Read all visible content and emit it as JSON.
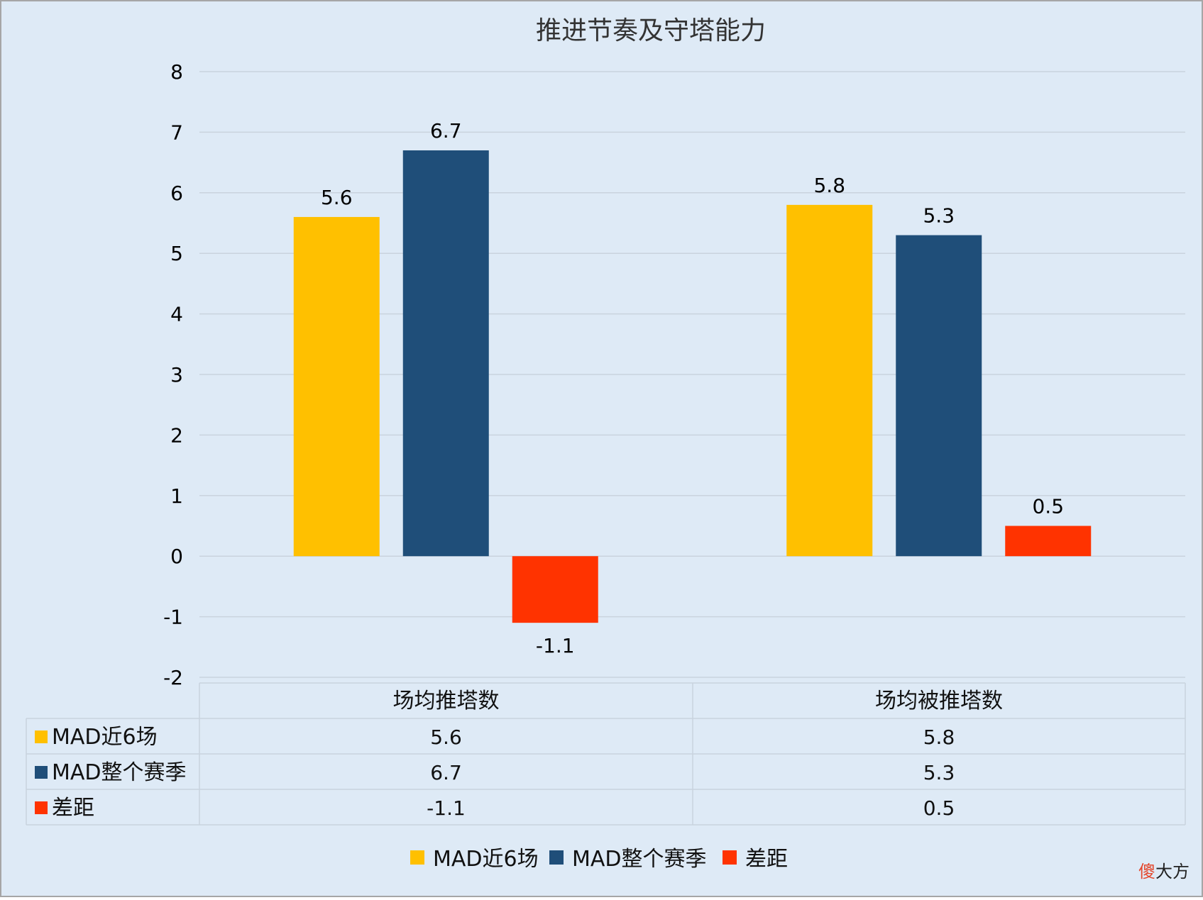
{
  "chart_data": {
    "type": "bar",
    "title": "推进节奏及守塔能力",
    "categories": [
      "场均推塔数",
      "场均被推塔数"
    ],
    "series": [
      {
        "name": "MAD近6场",
        "values": [
          5.6,
          5.8
        ],
        "color": "#FFC000"
      },
      {
        "name": "MAD整个赛季",
        "values": [
          6.7,
          5.3
        ],
        "color": "#1F4E79"
      },
      {
        "name": "差距",
        "values": [
          -1.1,
          0.5
        ],
        "color": "#FF3300"
      }
    ],
    "data_labels": [
      [
        "5.6",
        "5.8"
      ],
      [
        "6.7",
        "5.3"
      ],
      [
        "-1.1",
        "0.5"
      ]
    ],
    "y_ticks": [
      "8",
      "7",
      "6",
      "5",
      "4",
      "3",
      "2",
      "1",
      "0",
      "-1",
      "-2"
    ],
    "ylim": [
      -2,
      8
    ],
    "grid": true,
    "data_table": {
      "rows": [
        {
          "label": "MAD近6场",
          "values": [
            "5.6",
            "5.8"
          ]
        },
        {
          "label": "MAD整个赛季",
          "values": [
            "6.7",
            "5.3"
          ]
        },
        {
          "label": "差距",
          "values": [
            "-1.1",
            "0.5"
          ]
        }
      ]
    },
    "legend_position": "bottom",
    "background": "#DEEAF6",
    "gridline_color": "#C9D3DE"
  },
  "watermark": {
    "char1": "傻",
    "rest": "大方",
    "color1": "#E4472C",
    "color2": "#222222"
  }
}
